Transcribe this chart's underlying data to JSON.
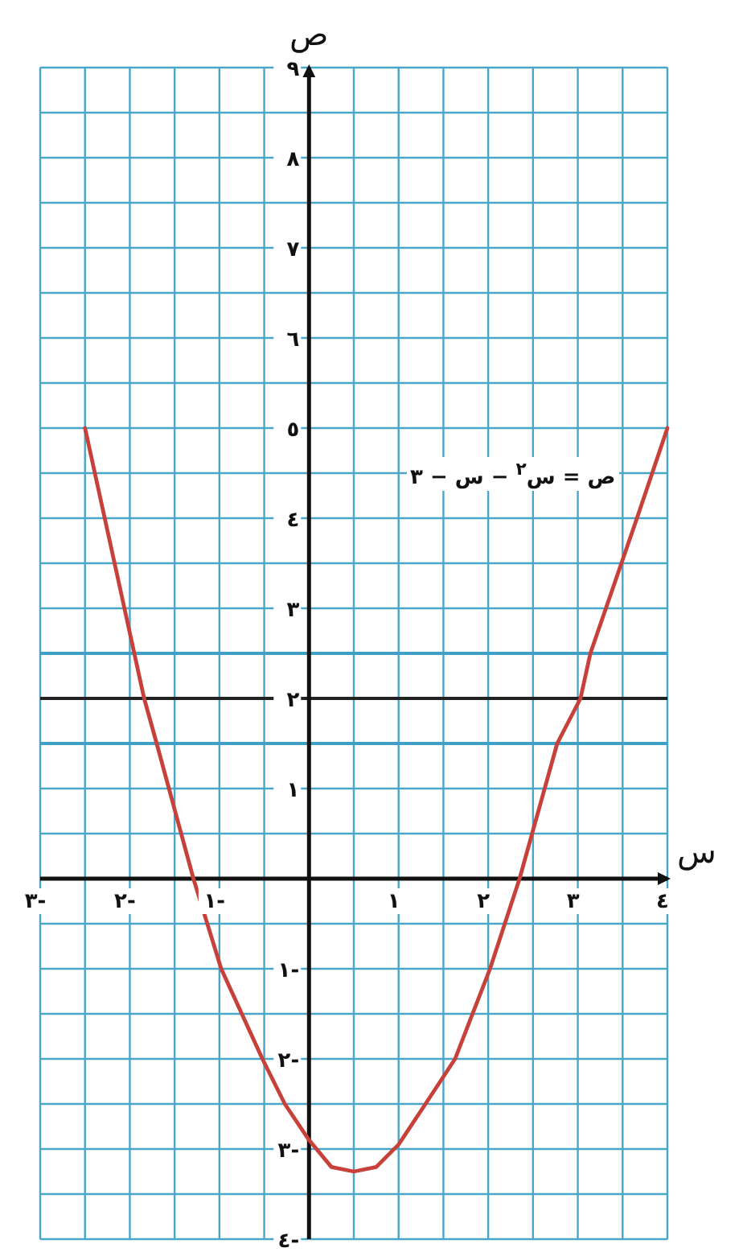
{
  "chart_data": {
    "type": "line",
    "xlabel": "س",
    "ylabel": "ص",
    "x": [
      -2.5,
      -1.95,
      -1.84,
      -1.7,
      -1.29,
      -0.98,
      -0.52,
      -0.27,
      0,
      0.25,
      0.5,
      0.75,
      1.0,
      1.3,
      1.63,
      2.02,
      2.35,
      2.77,
      3.03,
      3.14,
      3.66,
      4
    ],
    "series": [
      {
        "color": "#c8403a",
        "values": [
          5,
          2.5,
          2,
          1.5,
          0,
          -1,
          -2,
          -2.5,
          -2.9,
          -3.2,
          -3.25,
          -3.2,
          -2.95,
          -2.5,
          -2,
          -1,
          0,
          1.5,
          2,
          2.5,
          4,
          5
        ]
      }
    ],
    "xlim": [
      -3,
      4
    ],
    "ylim": [
      -4,
      9
    ],
    "xticks": [
      {
        "value": -3,
        "label": "٣-"
      },
      {
        "value": -2,
        "label": "٢-"
      },
      {
        "value": -1,
        "label": "١-"
      },
      {
        "value": 1,
        "label": "١"
      },
      {
        "value": 2,
        "label": "٢"
      },
      {
        "value": 3,
        "label": "٣"
      },
      {
        "value": 4,
        "label": "٤"
      }
    ],
    "yticks": [
      {
        "value": -4,
        "label": "٤-"
      },
      {
        "value": -3,
        "label": "٣-"
      },
      {
        "value": -2,
        "label": "٢-"
      },
      {
        "value": -1,
        "label": "١-"
      },
      {
        "value": 1,
        "label": "١"
      },
      {
        "value": 2,
        "label": "٢"
      },
      {
        "value": 3,
        "label": "٣"
      },
      {
        "value": 4,
        "label": "٤"
      },
      {
        "value": 5,
        "label": "٥"
      },
      {
        "value": 6,
        "label": "٦"
      },
      {
        "value": 7,
        "label": "٧"
      },
      {
        "value": 8,
        "label": "٨"
      },
      {
        "value": 9,
        "label": "٩"
      }
    ],
    "grid": true,
    "ref_lines": [
      {
        "axis": "y",
        "value": 2.5,
        "color": "#3f9fc4"
      },
      {
        "axis": "y",
        "value": 2,
        "color": "#222222"
      },
      {
        "axis": "y",
        "value": 1.5,
        "color": "#3f9fc4"
      }
    ],
    "annotations": [
      "ص = س$^{٢}$ − س − ٣"
    ]
  }
}
